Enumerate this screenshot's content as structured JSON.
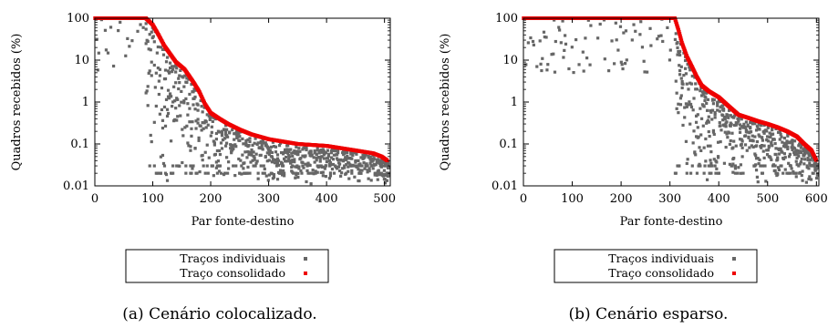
{
  "chart_data": [
    {
      "type": "scatter",
      "subtitle": "(a) Cenário colocalizado.",
      "xlabel": "Par fonte-destino",
      "ylabel": "Quadros recebidos (%)",
      "yscale": "log",
      "xlim": [
        0,
        510
      ],
      "ylim": [
        0.01,
        100
      ],
      "xticks": [
        0,
        100,
        200,
        300,
        400,
        500
      ],
      "yticks": [
        0.01,
        0.1,
        1,
        10,
        100
      ],
      "ytick_labels": [
        "0.01",
        "0.1",
        "1",
        "10",
        "100"
      ],
      "legend_position": "below",
      "series": [
        {
          "name": "Traços individuais",
          "color": "#666666",
          "marker": "square",
          "note_values": "scattered points between the consolidated curve and 0.01",
          "envelope": [
            [
              0,
              100
            ],
            [
              85,
              100
            ],
            [
              100,
              60
            ],
            [
              120,
              15
            ],
            [
              140,
              4
            ],
            [
              160,
              2
            ],
            [
              180,
              0.8
            ],
            [
              200,
              0.35
            ],
            [
              230,
              0.22
            ],
            [
              260,
              0.15
            ],
            [
              300,
              0.1
            ],
            [
              350,
              0.08
            ],
            [
              400,
              0.07
            ],
            [
              450,
              0.06
            ],
            [
              505,
              0.04
            ]
          ]
        },
        {
          "name": "Traço consolidado",
          "color": "#ee0000",
          "marker": "square",
          "values": [
            [
              0,
              100
            ],
            [
              88,
              100
            ],
            [
              100,
              70
            ],
            [
              110,
              40
            ],
            [
              120,
              22
            ],
            [
              130,
              14
            ],
            [
              140,
              9
            ],
            [
              155,
              6
            ],
            [
              170,
              3
            ],
            [
              180,
              1.8
            ],
            [
              190,
              0.9
            ],
            [
              200,
              0.55
            ],
            [
              215,
              0.4
            ],
            [
              230,
              0.3
            ],
            [
              250,
              0.22
            ],
            [
              270,
              0.17
            ],
            [
              300,
              0.13
            ],
            [
              350,
              0.1
            ],
            [
              400,
              0.09
            ],
            [
              450,
              0.07
            ],
            [
              480,
              0.06
            ],
            [
              495,
              0.05
            ],
            [
              505,
              0.04
            ]
          ]
        }
      ]
    },
    {
      "type": "scatter",
      "subtitle": "(b) Cenário esparso.",
      "xlabel": "Par fonte-destino",
      "ylabel": "Quadros recebidos (%)",
      "yscale": "log",
      "xlim": [
        0,
        605
      ],
      "ylim": [
        0.01,
        100
      ],
      "xticks": [
        0,
        100,
        200,
        300,
        400,
        500,
        600
      ],
      "yticks": [
        0.01,
        0.1,
        1,
        10,
        100
      ],
      "ytick_labels": [
        "0.01",
        "0.1",
        "1",
        "10",
        "100"
      ],
      "legend_position": "below",
      "series": [
        {
          "name": "Traços individuais",
          "color": "#666666",
          "marker": "square",
          "note_values": "sparse points before x=300, dense band between curve and 0.01 afterwards",
          "envelope": [
            [
              0,
              100
            ],
            [
              300,
              100
            ],
            [
              320,
              30
            ],
            [
              335,
              8
            ],
            [
              350,
              3
            ],
            [
              370,
              1.5
            ],
            [
              400,
              0.9
            ],
            [
              430,
              0.5
            ],
            [
              460,
              0.35
            ],
            [
              500,
              0.25
            ],
            [
              540,
              0.2
            ],
            [
              570,
              0.12
            ],
            [
              600,
              0.04
            ]
          ]
        },
        {
          "name": "Traço consolidado",
          "color": "#ee0000",
          "marker": "square",
          "values": [
            [
              0,
              100
            ],
            [
              310,
              100
            ],
            [
              318,
              50
            ],
            [
              325,
              25
            ],
            [
              335,
              12
            ],
            [
              345,
              7
            ],
            [
              355,
              4
            ],
            [
              365,
              2.5
            ],
            [
              380,
              1.8
            ],
            [
              400,
              1.3
            ],
            [
              420,
              0.8
            ],
            [
              440,
              0.5
            ],
            [
              460,
              0.42
            ],
            [
              480,
              0.35
            ],
            [
              500,
              0.3
            ],
            [
              520,
              0.25
            ],
            [
              540,
              0.2
            ],
            [
              560,
              0.15
            ],
            [
              575,
              0.1
            ],
            [
              590,
              0.07
            ],
            [
              600,
              0.04
            ]
          ]
        }
      ]
    }
  ]
}
